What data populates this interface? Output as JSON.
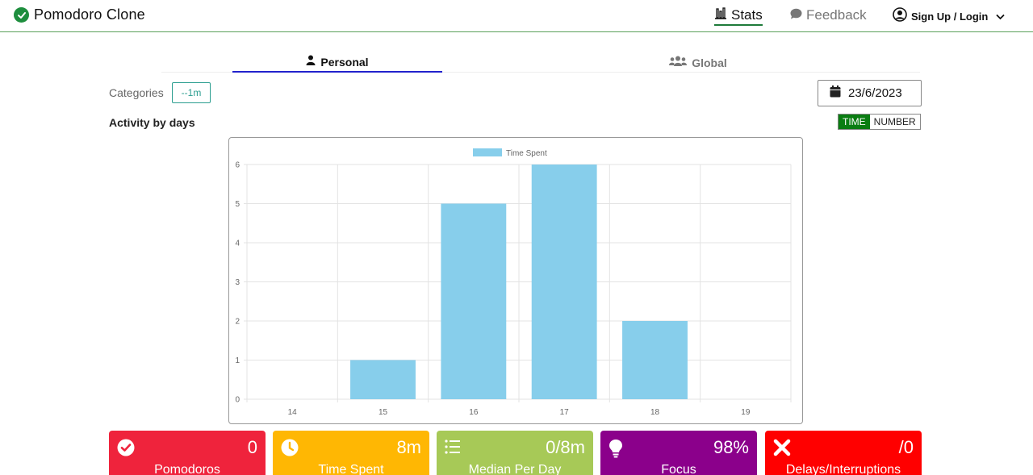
{
  "app": {
    "title": "Pomodoro Clone"
  },
  "nav": {
    "stats_label": "Stats",
    "feedback_label": "Feedback",
    "login_label": "Sign Up / Login"
  },
  "tabs": [
    {
      "label": "Personal",
      "active": true
    },
    {
      "label": "Global",
      "active": false
    }
  ],
  "filters": {
    "categories_label": "Categories",
    "category_chip": "--1m",
    "date": "23/6/2023"
  },
  "section": {
    "title": "Activity by days",
    "toggle_time": "TIME",
    "toggle_number": "NUMBER",
    "active_toggle": "TIME"
  },
  "chart_data": {
    "type": "bar",
    "categories": [
      "14",
      "15",
      "16",
      "17",
      "18",
      "19"
    ],
    "series": [
      {
        "name": "Time Spent",
        "values": [
          0,
          1,
          5,
          6,
          2,
          0
        ],
        "color": "#87ceeb"
      }
    ],
    "ylim": [
      0,
      6
    ],
    "yticks": [
      "0",
      "1",
      "2",
      "3",
      "4",
      "5",
      "6"
    ],
    "grid": true,
    "legend": "top-center"
  },
  "stats": [
    {
      "value": "0",
      "label": "Pomodoros",
      "color": "#ef233c",
      "icon": "check-circle-icon"
    },
    {
      "value": "8m",
      "label": "Time Spent",
      "color": "#ffb703",
      "icon": "clock-icon"
    },
    {
      "value": "0/8m",
      "label": "Median Per Day",
      "color": "#a7c957",
      "icon": "list-icon"
    },
    {
      "value": "98%",
      "label": "Focus",
      "color": "#8b008b",
      "icon": "lightbulb-icon"
    },
    {
      "value": "/0",
      "label": "Delays/Interruptions",
      "color": "#ff0000",
      "icon": "close-icon"
    }
  ]
}
